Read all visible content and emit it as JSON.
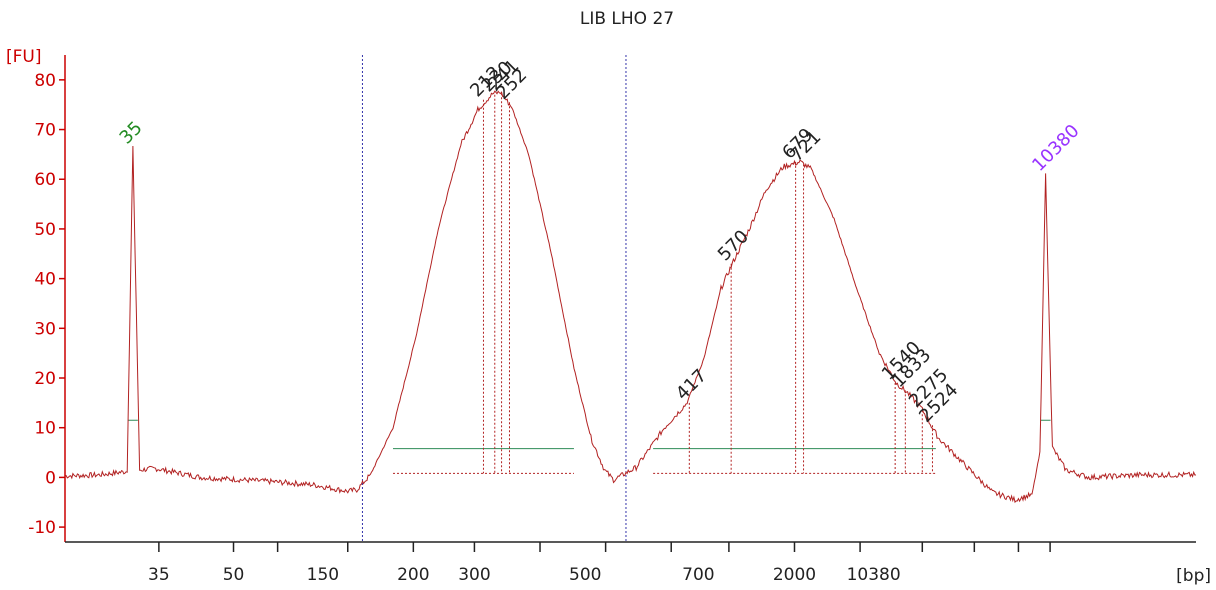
{
  "chart_data": {
    "type": "line",
    "title": "LIB LHO 27",
    "ylabel": "[FU]",
    "xlabel": "[bp]",
    "ylim": [
      -13,
      85
    ],
    "y_ticks": [
      -10,
      0,
      10,
      20,
      30,
      40,
      50,
      60,
      70,
      80
    ],
    "x_tick_labels": [
      "35",
      "50",
      "150",
      "200",
      "300",
      "500",
      "700",
      "2000",
      "10380"
    ],
    "colors": {
      "trace": "#b22222",
      "axis_y": "#cc0000",
      "axis_x": "#222222",
      "marker_35": "#228b22",
      "marker_10380": "#9933ff",
      "region_line": "#2e8b57",
      "region_border": "#3333aa"
    },
    "series": [
      {
        "points": [
          [
            0,
            0.3
          ],
          [
            3,
            0.5
          ],
          [
            5.5,
            1.2
          ],
          [
            6.0,
            66.5
          ],
          [
            6.6,
            1.5
          ],
          [
            8,
            1.8
          ],
          [
            12,
            0.0
          ],
          [
            18,
            -0.8
          ],
          [
            22,
            -1.5
          ],
          [
            25,
            -2.8
          ],
          [
            25.8,
            -2.5
          ],
          [
            27,
            0.5
          ],
          [
            29,
            10
          ],
          [
            31,
            28
          ],
          [
            33,
            50
          ],
          [
            35,
            67
          ],
          [
            36.5,
            74
          ],
          [
            37.8,
            77.2
          ],
          [
            38.5,
            77.5
          ],
          [
            39.5,
            74.5
          ],
          [
            41,
            65
          ],
          [
            43,
            45
          ],
          [
            45,
            22
          ],
          [
            46.5,
            8
          ],
          [
            47.7,
            1.5
          ],
          [
            48.5,
            -0.5
          ],
          [
            50.5,
            2
          ],
          [
            53,
            10
          ],
          [
            55,
            15
          ],
          [
            56.5,
            24
          ],
          [
            58,
            38
          ],
          [
            59,
            43
          ],
          [
            60.5,
            50
          ],
          [
            62,
            58
          ],
          [
            63.5,
            62.5
          ],
          [
            65,
            63.5
          ],
          [
            66,
            62
          ],
          [
            68,
            52
          ],
          [
            70,
            38
          ],
          [
            72,
            25
          ],
          [
            73.5,
            19
          ],
          [
            74.5,
            17
          ],
          [
            75.7,
            14
          ],
          [
            77.2,
            8
          ],
          [
            78.5,
            5
          ],
          [
            80,
            1.5
          ],
          [
            82,
            -3
          ],
          [
            84,
            -4.5
          ],
          [
            85.5,
            -3.5
          ],
          [
            86.2,
            5
          ],
          [
            86.7,
            61
          ],
          [
            87.3,
            6
          ],
          [
            88.5,
            1.5
          ],
          [
            90.5,
            0.0
          ],
          [
            95,
            0.5
          ],
          [
            100,
            0.5
          ]
        ]
      }
    ],
    "peaks": [
      {
        "label": "35",
        "x": 6.0,
        "y": 66.5,
        "type": "marker"
      },
      {
        "label": "212",
        "x": 37.0,
        "y": 76.0
      },
      {
        "label": "230",
        "x": 38.0,
        "y": 77.0
      },
      {
        "label": "241",
        "x": 38.6,
        "y": 77.3
      },
      {
        "label": "252",
        "x": 39.3,
        "y": 75.5
      },
      {
        "label": "417",
        "x": 55.2,
        "y": 15.0
      },
      {
        "label": "570",
        "x": 58.9,
        "y": 43.0
      },
      {
        "label": "679",
        "x": 64.6,
        "y": 63.5
      },
      {
        "label": "721",
        "x": 65.3,
        "y": 63.0
      },
      {
        "label": "1540",
        "x": 73.4,
        "y": 19.0
      },
      {
        "label": "1833",
        "x": 74.3,
        "y": 17.5
      },
      {
        "label": "2275",
        "x": 75.8,
        "y": 13.5
      },
      {
        "label": "2524",
        "x": 76.7,
        "y": 10.5
      },
      {
        "label": "10380",
        "x": 86.7,
        "y": 61.0,
        "type": "marker"
      }
    ],
    "regions": [
      [
        26.3,
        47.9
      ],
      [
        49.6,
        84.2
      ]
    ],
    "smear_ranges": [
      [
        29,
        45
      ],
      [
        52,
        77
      ]
    ],
    "smear_level": 5.8
  }
}
